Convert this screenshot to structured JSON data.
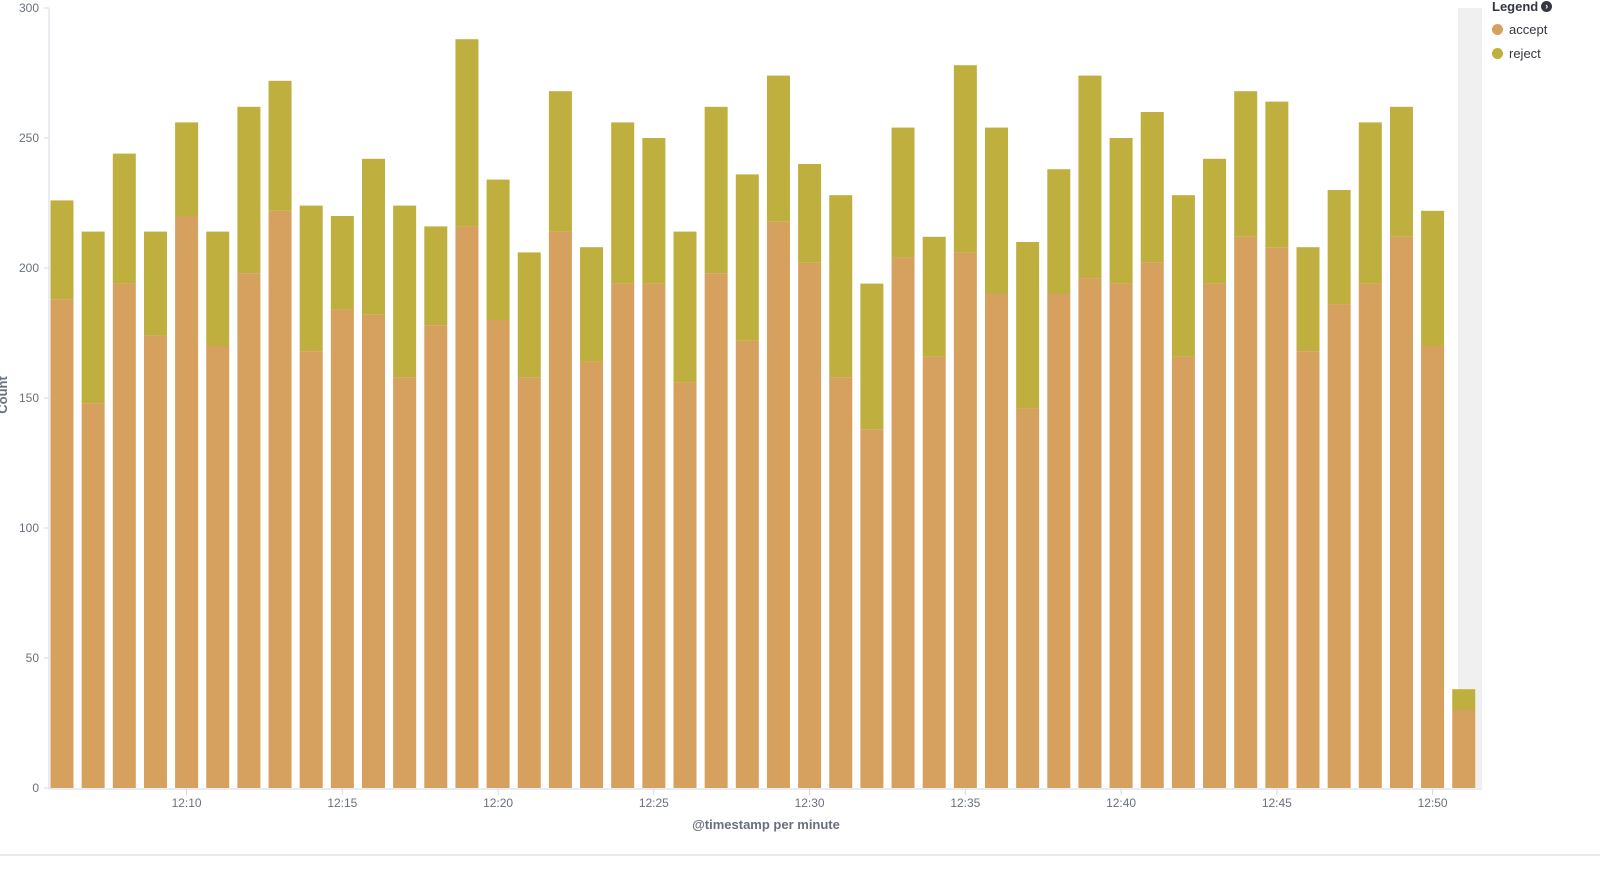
{
  "chart_data": {
    "type": "bar",
    "stacked": true,
    "xlabel": "@timestamp per minute",
    "ylabel": "Count",
    "ylim": [
      0,
      300
    ],
    "y_ticks": [
      0,
      50,
      100,
      150,
      200,
      250,
      300
    ],
    "x_tick_labels": [
      "12:10",
      "12:15",
      "12:20",
      "12:25",
      "12:30",
      "12:35",
      "12:40",
      "12:45",
      "12:50"
    ],
    "x_tick_bar_index": [
      4,
      9,
      14,
      19,
      24,
      29,
      34,
      39,
      44
    ],
    "categories": [
      "12:06",
      "12:07",
      "12:08",
      "12:09",
      "12:10",
      "12:11",
      "12:12",
      "12:13",
      "12:14",
      "12:15",
      "12:16",
      "12:17",
      "12:18",
      "12:19",
      "12:20",
      "12:21",
      "12:22",
      "12:23",
      "12:24",
      "12:25",
      "12:26",
      "12:27",
      "12:28",
      "12:29",
      "12:30",
      "12:31",
      "12:32",
      "12:33",
      "12:34",
      "12:35",
      "12:36",
      "12:37",
      "12:38",
      "12:39",
      "12:40",
      "12:41",
      "12:42",
      "12:43",
      "12:44",
      "12:45",
      "12:46",
      "12:47",
      "12:48",
      "12:49",
      "12:50",
      "12:51"
    ],
    "series": [
      {
        "name": "accept",
        "color": "#d6a05e",
        "values": [
          188,
          148,
          194,
          174,
          220,
          170,
          198,
          222,
          168,
          184,
          182,
          158,
          178,
          216,
          180,
          158,
          214,
          164,
          194,
          194,
          156,
          198,
          172,
          218,
          202,
          158,
          138,
          204,
          166,
          206,
          190,
          146,
          190,
          196,
          194,
          202,
          166,
          194,
          212,
          208,
          168,
          186,
          194,
          212,
          170,
          30
        ]
      },
      {
        "name": "reject",
        "color": "#bfaf3e",
        "values": [
          38,
          66,
          50,
          40,
          36,
          44,
          64,
          50,
          56,
          36,
          60,
          66,
          38,
          72,
          54,
          48,
          54,
          44,
          62,
          56,
          58,
          64,
          64,
          56,
          38,
          70,
          56,
          50,
          46,
          72,
          64,
          64,
          48,
          78,
          56,
          58,
          62,
          48,
          56,
          56,
          40,
          44,
          62,
          50,
          52,
          8
        ]
      }
    ],
    "highlight_last_bucket": true,
    "grid": false,
    "legend_position": "top-right"
  },
  "legend": {
    "title": "Legend",
    "toggle_icon": "chevron-right-circle-icon"
  }
}
